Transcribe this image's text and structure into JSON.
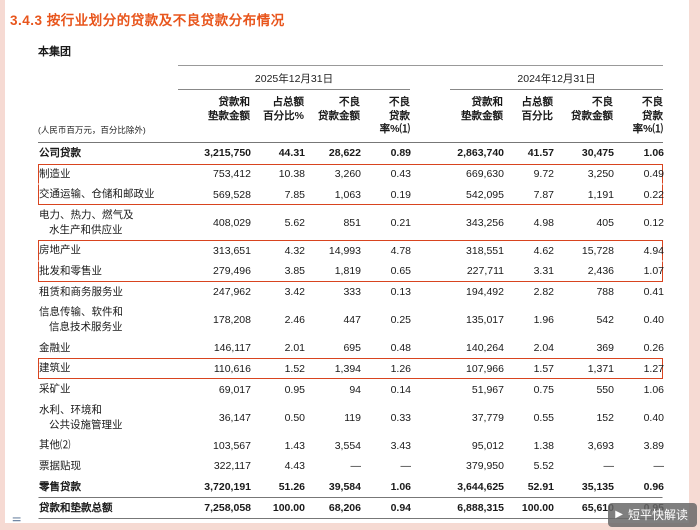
{
  "page": {
    "section_title": "3.4.3 按行业划分的贷款及不良贷款分布情况",
    "group_label": "本集团",
    "footer_glyph": "≡",
    "watermark": {
      "icon": "▶",
      "text": "短平快解读"
    }
  },
  "colors": {
    "accent": "#e8551c",
    "highlight_box": "#d8441f"
  },
  "table": {
    "unit_note": "(人民币百万元，百分比除外)",
    "periods": [
      {
        "label": "2025年12月31日"
      },
      {
        "label": "2024年12月31日"
      }
    ],
    "columns": [
      {
        "line1": "贷款和",
        "line2": "垫款金额"
      },
      {
        "line1": "占总额",
        "line2": "百分比%"
      },
      {
        "line1": "不良",
        "line2": "贷款金额"
      },
      {
        "line1": "不良",
        "line2": "贷款率%⑴"
      },
      {
        "line1": "贷款和",
        "line2": "垫款金额"
      },
      {
        "line1": "占总额",
        "line2": "百分比"
      },
      {
        "line1": "不良",
        "line2": "贷款金额"
      },
      {
        "line1": "不良",
        "line2": "贷款率%⑴"
      }
    ],
    "rows": [
      {
        "name": [
          "公司贷款"
        ],
        "values": [
          "3,215,750",
          "44.31",
          "28,622",
          "0.89",
          "2,863,740",
          "41.57",
          "30,475",
          "1.06"
        ],
        "bold": true
      },
      {
        "name": [
          "制造业"
        ],
        "values": [
          "753,412",
          "10.38",
          "3,260",
          "0.43",
          "669,630",
          "9.72",
          "3,250",
          "0.49"
        ],
        "hl": "start"
      },
      {
        "name": [
          "交通运输、仓储和邮政业"
        ],
        "values": [
          "569,528",
          "7.85",
          "1,063",
          "0.19",
          "542,095",
          "7.87",
          "1,191",
          "0.22"
        ],
        "hl": "end"
      },
      {
        "name": [
          "电力、热力、燃气及",
          "水生产和供应业"
        ],
        "values": [
          "408,029",
          "5.62",
          "851",
          "0.21",
          "343,256",
          "4.98",
          "405",
          "0.12"
        ]
      },
      {
        "name": [
          "房地产业"
        ],
        "values": [
          "313,651",
          "4.32",
          "14,993",
          "4.78",
          "318,551",
          "4.62",
          "15,728",
          "4.94"
        ],
        "hl": "start"
      },
      {
        "name": [
          "批发和零售业"
        ],
        "values": [
          "279,496",
          "3.85",
          "1,819",
          "0.65",
          "227,711",
          "3.31",
          "2,436",
          "1.07"
        ],
        "hl": "end"
      },
      {
        "name": [
          "租赁和商务服务业"
        ],
        "values": [
          "247,962",
          "3.42",
          "333",
          "0.13",
          "194,492",
          "2.82",
          "788",
          "0.41"
        ]
      },
      {
        "name": [
          "信息传输、软件和",
          "信息技术服务业"
        ],
        "values": [
          "178,208",
          "2.46",
          "447",
          "0.25",
          "135,017",
          "1.96",
          "542",
          "0.40"
        ]
      },
      {
        "name": [
          "金融业"
        ],
        "values": [
          "146,117",
          "2.01",
          "695",
          "0.48",
          "140,264",
          "2.04",
          "369",
          "0.26"
        ]
      },
      {
        "name": [
          "建筑业"
        ],
        "values": [
          "110,616",
          "1.52",
          "1,394",
          "1.26",
          "107,966",
          "1.57",
          "1,371",
          "1.27"
        ],
        "hl": "only"
      },
      {
        "name": [
          "采矿业"
        ],
        "values": [
          "69,017",
          "0.95",
          "94",
          "0.14",
          "51,967",
          "0.75",
          "550",
          "1.06"
        ]
      },
      {
        "name": [
          "水利、环境和",
          "公共设施管理业"
        ],
        "values": [
          "36,147",
          "0.50",
          "119",
          "0.33",
          "37,779",
          "0.55",
          "152",
          "0.40"
        ]
      },
      {
        "name": [
          "其他⑵"
        ],
        "values": [
          "103,567",
          "1.43",
          "3,554",
          "3.43",
          "95,012",
          "1.38",
          "3,693",
          "3.89"
        ]
      },
      {
        "name": [
          "票据贴现"
        ],
        "values": [
          "322,117",
          "4.43",
          "—",
          "—",
          "379,950",
          "5.52",
          "—",
          "—"
        ]
      },
      {
        "name": [
          "零售贷款"
        ],
        "values": [
          "3,720,191",
          "51.26",
          "39,584",
          "1.06",
          "3,644,625",
          "52.91",
          "35,135",
          "0.96"
        ],
        "bold": true
      },
      {
        "name": [
          "贷款和垫款总额"
        ],
        "values": [
          "7,258,058",
          "100.00",
          "68,206",
          "0.94",
          "6,888,315",
          "100.00",
          "65,610",
          "0.95"
        ],
        "bold": true,
        "total": true
      }
    ]
  }
}
